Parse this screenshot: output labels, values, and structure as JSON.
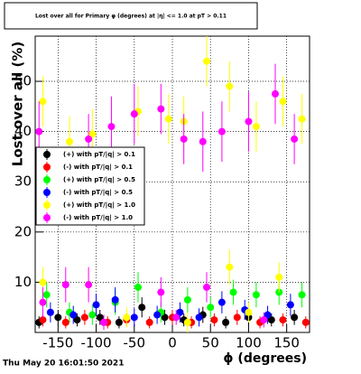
{
  "chart_data": {
    "type": "scatter",
    "title": "Lost over all for Primary φ (degrees) at |η| <= 1.0 at pT > 0.11",
    "x_label": "ϕ (degrees)",
    "y_label": "Lost over all (%)",
    "timestamp": "Thu May 20 16:01:50 2021",
    "xlim": [
      -180,
      180
    ],
    "ylim": [
      0,
      59
    ],
    "xticks": [
      -150,
      -100,
      -50,
      0,
      50,
      100,
      150
    ],
    "yticks": [
      10,
      20,
      30,
      40,
      50
    ],
    "grid": true,
    "legend": "left",
    "series": [
      {
        "name": "(+) with pT/|q| > 0.1",
        "color": "#000000",
        "x": [
          -175,
          -150,
          -125,
          -95,
          -70,
          -40,
          -10,
          15,
          40,
          70,
          100,
          130,
          160
        ],
        "values": [
          2,
          3,
          2.5,
          3,
          2,
          5,
          3,
          2.5,
          3.5,
          2,
          3,
          2.5,
          3
        ],
        "errors": [
          1.2,
          1.5,
          1.3,
          1.5,
          1.2,
          2,
          1.5,
          1.3,
          1.6,
          1.2,
          1.5,
          1.3,
          1.5
        ]
      },
      {
        "name": "(-) with pT/|q| > 0.1",
        "color": "#ff0000",
        "x": [
          -170,
          -140,
          -115,
          -85,
          -60,
          -30,
          0,
          25,
          55,
          85,
          115,
          145,
          175
        ],
        "values": [
          2.5,
          2,
          3,
          2,
          2.5,
          2,
          3,
          2,
          2.5,
          3,
          2,
          2.5,
          2
        ],
        "errors": [
          1.3,
          1.2,
          1.5,
          1.2,
          1.3,
          1.2,
          1.5,
          1.2,
          1.3,
          1.5,
          1.2,
          1.3,
          1.2
        ]
      },
      {
        "name": "(+) with pT/|q| > 0.5",
        "color": "#00ff00",
        "x": [
          -165,
          -135,
          -105,
          -75,
          -45,
          -15,
          20,
          50,
          80,
          110,
          140,
          170
        ],
        "values": [
          7.5,
          4,
          3.5,
          6,
          9,
          4,
          6.5,
          5,
          8,
          7.5,
          8,
          7.5
        ],
        "errors": [
          2.5,
          2,
          2,
          2.5,
          3,
          2,
          2.5,
          2,
          2.5,
          2.5,
          2.5,
          2.5
        ]
      },
      {
        "name": "(-) with pT/|q| > 0.5",
        "color": "#0000ff",
        "x": [
          -160,
          -130,
          -100,
          -75,
          -50,
          -20,
          10,
          35,
          65,
          95,
          125,
          155
        ],
        "values": [
          4,
          3.5,
          5.5,
          6.5,
          3,
          3.5,
          4,
          3,
          6,
          4.5,
          3.5,
          5.5
        ],
        "errors": [
          2,
          1.8,
          2.2,
          2.5,
          1.8,
          1.8,
          2,
          1.8,
          2.2,
          2,
          1.8,
          2.2
        ]
      },
      {
        "name": "(+) with pT/|q| > 1.0",
        "color": "#ffff00",
        "x": [
          -170,
          -135,
          -105,
          -45,
          -5,
          15,
          45,
          75,
          110,
          145,
          170,
          -170,
          -110,
          75,
          140,
          -60,
          20,
          100
        ],
        "values": [
          46,
          38,
          39.5,
          44,
          42.5,
          42,
          54,
          49,
          41,
          46,
          42.5,
          10,
          9.5,
          13,
          11,
          3,
          2,
          4
        ],
        "errors": [
          5,
          5,
          5,
          5,
          5,
          5,
          5,
          5,
          5,
          5,
          5,
          3,
          3,
          3.5,
          3,
          2,
          2,
          2
        ]
      },
      {
        "name": "(-) with pT/|q| > 1.0",
        "color": "#ff00ff",
        "x": [
          -175,
          -110,
          -80,
          -50,
          -15,
          15,
          40,
          65,
          100,
          135,
          160,
          -170,
          -140,
          -110,
          -15,
          45,
          -90,
          5,
          120
        ],
        "values": [
          40,
          38.5,
          41,
          43.5,
          44.5,
          38.5,
          38,
          40,
          42,
          47.5,
          38.5,
          6,
          9.5,
          9.5,
          8,
          9,
          2,
          3,
          2.5
        ],
        "errors": [
          6,
          5,
          6,
          6,
          5,
          5,
          6,
          6,
          6,
          6,
          5,
          3,
          3.5,
          3.5,
          3,
          3,
          1.5,
          1.5,
          1.5
        ]
      }
    ]
  }
}
